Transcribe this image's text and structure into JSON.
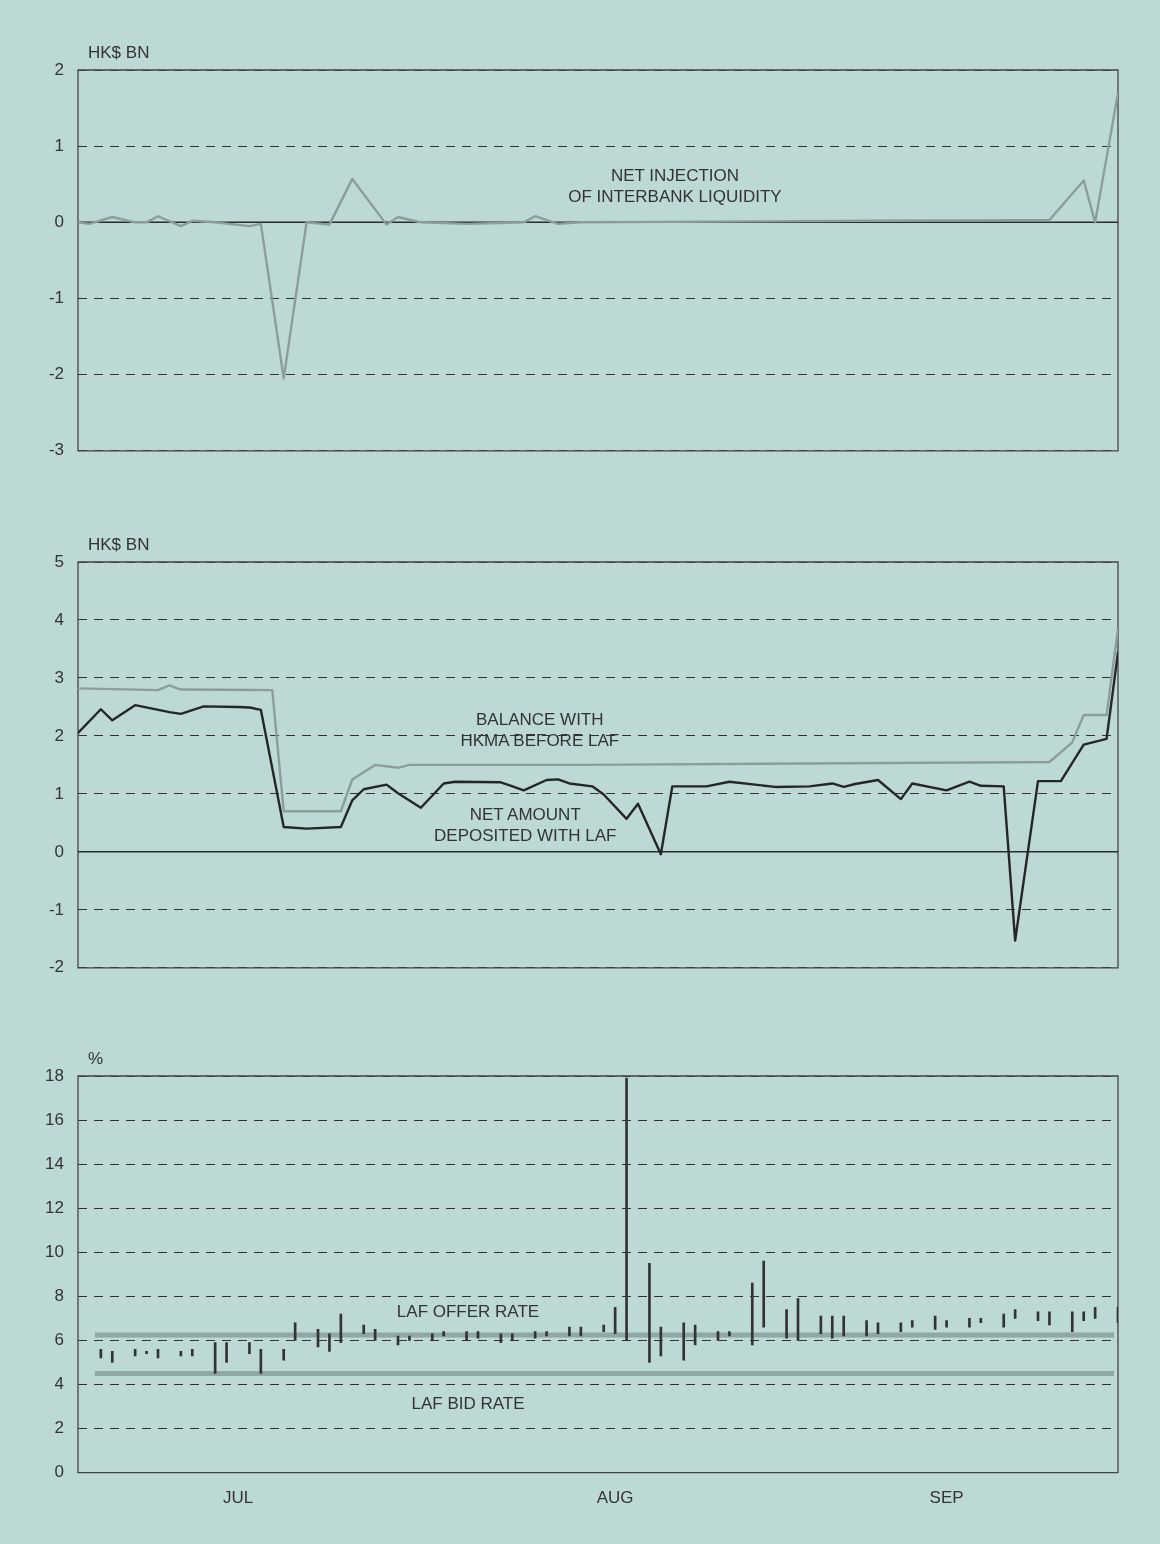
{
  "chart_data": [
    {
      "type": "line",
      "ylabel": "HK$ BN",
      "xlim": [
        "--07-01",
        "--09-30"
      ],
      "ylim": [
        -3,
        2
      ],
      "yticks": [
        -3,
        -2,
        -1,
        0,
        1,
        2
      ],
      "grid": "y",
      "tick_labels": "y",
      "ref_lines": [
        {
          "axis": "y",
          "value": 0,
          "color": "#2b2b2b"
        }
      ],
      "series": [
        {
          "name": "NET INJECTION\nOF INTERBANK LIQUIDITY",
          "color": "#8c9e9b",
          "x": [
            "--07-01",
            "--07-02",
            "--07-04",
            "--07-06",
            "--07-07",
            "--07-08",
            "--07-10",
            "--07-11",
            "--07-13",
            "--07-16",
            "--07-17",
            "--07-19",
            "--07-21",
            "--07-23",
            "--07-25",
            "--07-28",
            "--07-29",
            "--07-31",
            "--08-04",
            "--08-09",
            "--08-10",
            "--08-12",
            "--08-14",
            "--09-08",
            "--09-24",
            "--09-27",
            "--09-28",
            "--09-30"
          ],
          "values": [
            0,
            -0.02,
            0.07,
            0,
            0,
            0.08,
            -0.05,
            0.02,
            0,
            -0.05,
            -0.02,
            -2.05,
            0,
            -0.03,
            0.57,
            -0.03,
            0.07,
            0,
            -0.02,
            0,
            0.08,
            -0.02,
            0,
            0.02,
            0.03,
            0.55,
            0,
            1.7
          ]
        }
      ]
    },
    {
      "type": "line",
      "ylabel": "HK$ BN",
      "xlim": [
        "--07-01",
        "--09-30"
      ],
      "ylim": [
        -2,
        5
      ],
      "yticks": [
        -2,
        -1,
        0,
        1,
        2,
        3,
        4,
        5
      ],
      "grid": "y",
      "tick_labels": "y",
      "ref_lines": [
        {
          "axis": "y",
          "value": 0,
          "color": "#2b2b2b"
        }
      ],
      "series": [
        {
          "name": "BALANCE WITH\nHKMA BEFORE LAF",
          "color": "#8c9e9b",
          "x": [
            "--07-01",
            "--07-08",
            "--07-09",
            "--07-10",
            "--07-18",
            "--07-19",
            "--07-24",
            "--07-25",
            "--07-27",
            "--07-29",
            "--07-30",
            "--08-14",
            "--09-24",
            "--09-26",
            "--09-27",
            "--09-29",
            "--09-30"
          ],
          "values": [
            2.82,
            2.79,
            2.87,
            2.8,
            2.79,
            0.7,
            0.7,
            1.25,
            1.5,
            1.45,
            1.5,
            1.5,
            1.55,
            1.89,
            2.36,
            2.36,
            3.85
          ]
        },
        {
          "name": "NET AMOUNT\nDEPOSITED WITH LAF",
          "color": "#262626",
          "x": [
            "--07-01",
            "--07-03",
            "--07-04",
            "--07-06",
            "--07-09",
            "--07-10",
            "--07-12",
            "--07-15",
            "--07-16",
            "--07-17",
            "--07-19",
            "--07-21",
            "--07-24",
            "--07-25",
            "--07-26",
            "--07-28",
            "--07-29",
            "--07-31",
            "--08-02",
            "--08-03",
            "--08-07",
            "--08-09",
            "--08-11",
            "--08-12",
            "--08-13",
            "--08-15",
            "--08-16",
            "--08-18",
            "--08-19",
            "--08-21",
            "--08-22",
            "--08-25",
            "--08-27",
            "--08-31",
            "--09-03",
            "--09-05",
            "--09-06",
            "--09-07",
            "--09-09",
            "--09-11",
            "--09-12",
            "--09-15",
            "--09-17",
            "--09-18",
            "--09-20",
            "--09-21",
            "--09-23",
            "--09-25",
            "--09-27",
            "--09-29",
            "--09-30"
          ],
          "values": [
            2.05,
            2.46,
            2.27,
            2.53,
            2.41,
            2.38,
            2.51,
            2.5,
            2.49,
            2.45,
            0.43,
            0.4,
            0.43,
            0.89,
            1.08,
            1.16,
            1.01,
            0.76,
            1.18,
            1.21,
            1.2,
            1.06,
            1.24,
            1.25,
            1.18,
            1.13,
            0.99,
            0.57,
            0.83,
            -0.04,
            1.13,
            1.13,
            1.21,
            1.12,
            1.13,
            1.18,
            1.12,
            1.17,
            1.24,
            0.91,
            1.18,
            1.06,
            1.21,
            1.14,
            1.13,
            -1.53,
            1.22,
            1.22,
            1.85,
            1.95,
            3.44
          ]
        }
      ]
    },
    {
      "type": "bar",
      "ylabel": "%",
      "xlim": [
        "--07-01",
        "--09-30"
      ],
      "xticks": [
        {
          "value": "--07-15",
          "label": "JUL"
        },
        {
          "value": "--08-17",
          "label": "AUG"
        },
        {
          "value": "--09-15",
          "label": "SEP"
        }
      ],
      "ylim": [
        0,
        18
      ],
      "yticks": [
        0,
        2,
        4,
        6,
        8,
        10,
        12,
        14,
        16,
        18
      ],
      "grid": "y",
      "color": "#333333",
      "ref_lines": [
        {
          "axis": "y",
          "value": 6.25,
          "label": "LAF OFFER RATE",
          "color": "#8fa8a5"
        },
        {
          "axis": "y",
          "value": 4.5,
          "label": "LAF BID RATE",
          "color": "#8fa8a5"
        }
      ],
      "x": [
        "--07-03",
        "--07-04",
        "--07-06",
        "--07-07",
        "--07-08",
        "--07-10",
        "--07-11",
        "--07-13",
        "--07-14",
        "--07-16",
        "--07-17",
        "--07-19",
        "--07-20",
        "--07-22",
        "--07-23",
        "--07-24",
        "--07-26",
        "--07-27",
        "--07-29",
        "--07-30",
        "--08-01",
        "--08-02",
        "--08-04",
        "--08-05",
        "--08-07",
        "--08-08",
        "--08-10",
        "--08-11",
        "--08-13",
        "--08-14",
        "--08-16",
        "--08-17",
        "--08-18",
        "--08-20",
        "--08-21",
        "--08-23",
        "--08-24",
        "--08-26",
        "--08-27",
        "--08-29",
        "--08-30",
        "--09-01",
        "--09-02",
        "--09-04",
        "--09-05",
        "--09-06",
        "--09-08",
        "--09-09",
        "--09-11",
        "--09-12",
        "--09-14",
        "--09-15",
        "--09-17",
        "--09-18",
        "--09-20",
        "--09-21",
        "--09-23",
        "--09-24",
        "--09-26",
        "--09-27",
        "--09-28",
        "--09-30"
      ],
      "base": [
        5.2,
        5.0,
        5.3,
        5.4,
        5.2,
        5.3,
        5.3,
        4.5,
        5.0,
        5.4,
        4.5,
        5.1,
        6.0,
        5.7,
        5.5,
        5.9,
        6.3,
        6.0,
        5.8,
        6.0,
        6.0,
        6.2,
        6.0,
        6.1,
        5.9,
        6.0,
        6.1,
        6.2,
        6.2,
        6.2,
        6.4,
        6.3,
        6.0,
        5.0,
        5.3,
        5.1,
        5.8,
        6.0,
        6.2,
        5.8,
        6.6,
        6.1,
        6.0,
        6.3,
        6.1,
        6.2,
        6.2,
        6.3,
        6.4,
        6.6,
        6.5,
        6.6,
        6.6,
        6.8,
        6.6,
        7.0,
        6.9,
        6.7,
        6.4,
        6.9,
        7.0,
        6.8
      ],
      "values": [
        0.4,
        0.5,
        0.3,
        0.1,
        0.4,
        0.2,
        0.3,
        1.4,
        0.9,
        0.5,
        1.1,
        0.5,
        0.8,
        0.8,
        0.8,
        1.3,
        0.4,
        0.5,
        0.4,
        0.2,
        0.3,
        0.2,
        0.4,
        0.3,
        0.4,
        0.3,
        0.3,
        0.2,
        0.4,
        0.4,
        0.3,
        1.2,
        11.9,
        4.5,
        1.3,
        1.7,
        0.9,
        0.4,
        0.2,
        2.8,
        3.0,
        1.3,
        1.9,
        0.8,
        1.0,
        0.9,
        0.7,
        0.5,
        0.4,
        0.3,
        0.6,
        0.3,
        0.4,
        0.2,
        0.6,
        0.4,
        0.4,
        0.6,
        0.9,
        0.4,
        0.5,
        0.7
      ]
    }
  ]
}
